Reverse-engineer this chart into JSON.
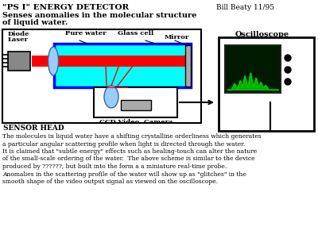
{
  "title_line1": "\"PS I\" ENERGY DETECTOR",
  "title_line2": "Senses anomalies in the molecular structure",
  "title_line3": "of liquid water.",
  "author": "Bill Beaty 11/95",
  "sensor_label": "SENSOR HEAD",
  "oscilloscope_label": "Oscilloscope",
  "ccd_label": "CCD Video  Camera",
  "body_text": [
    "The molecules in liquid water have a shifting crystalline orderliness which generates",
    "a particular angular scattering profile when light is directed through the water.",
    "It is claimed that \"subtle energy\" effects such as healing-touch can alter the nature",
    "of the small-scale ordering of the water.  The above scheme is similar to the device",
    "produced by ??????, but built into the form a a miniature real-time probe.",
    "Anomalies in the scattering profile of the water will show up as \"glitches\" in the",
    "smooth shape of the video output signal as viewed on the oscilloscope."
  ],
  "bg_color": "#ffffff",
  "water_color": "#00ffff",
  "beam_color": "#ff0000",
  "lens_color": "#99ccff",
  "mirror_color": "#aaaaaa",
  "scope_bg": "#001a00",
  "scope_signal": "#00cc00"
}
